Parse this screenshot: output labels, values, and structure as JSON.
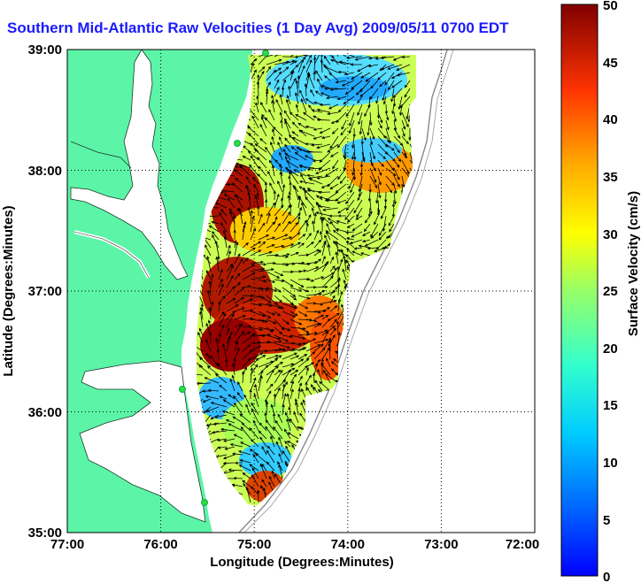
{
  "title": "Southern Mid-Atlantic Raw Velocities (1 Day Avg) 2009/05/11 0700 EDT",
  "x_axis": {
    "label": "Longitude (Degrees:Minutes)",
    "ticks": [
      "77:00",
      "76:00",
      "75:00",
      "74:00",
      "73:00",
      "72:00"
    ]
  },
  "y_axis": {
    "label": "Latitude (Degrees:Minutes)",
    "ticks": [
      "39:00",
      "38:00",
      "37:00",
      "36:00",
      "35:00"
    ]
  },
  "colorbar": {
    "label": "Surface Velocity (cm/s)",
    "ticks": [
      "50",
      "45",
      "40",
      "35",
      "30",
      "25",
      "20",
      "15",
      "10",
      "5",
      "0"
    ],
    "min": 0,
    "max": 50,
    "colormap": "jet"
  },
  "colors": {
    "title": "#1a1aff",
    "land": "#5cf5a8",
    "station": "#33dd33"
  },
  "map": {
    "lon_range": [
      -77,
      -72
    ],
    "lat_range": [
      35,
      39
    ],
    "grid": "dotted",
    "radar_stations": 4
  }
}
